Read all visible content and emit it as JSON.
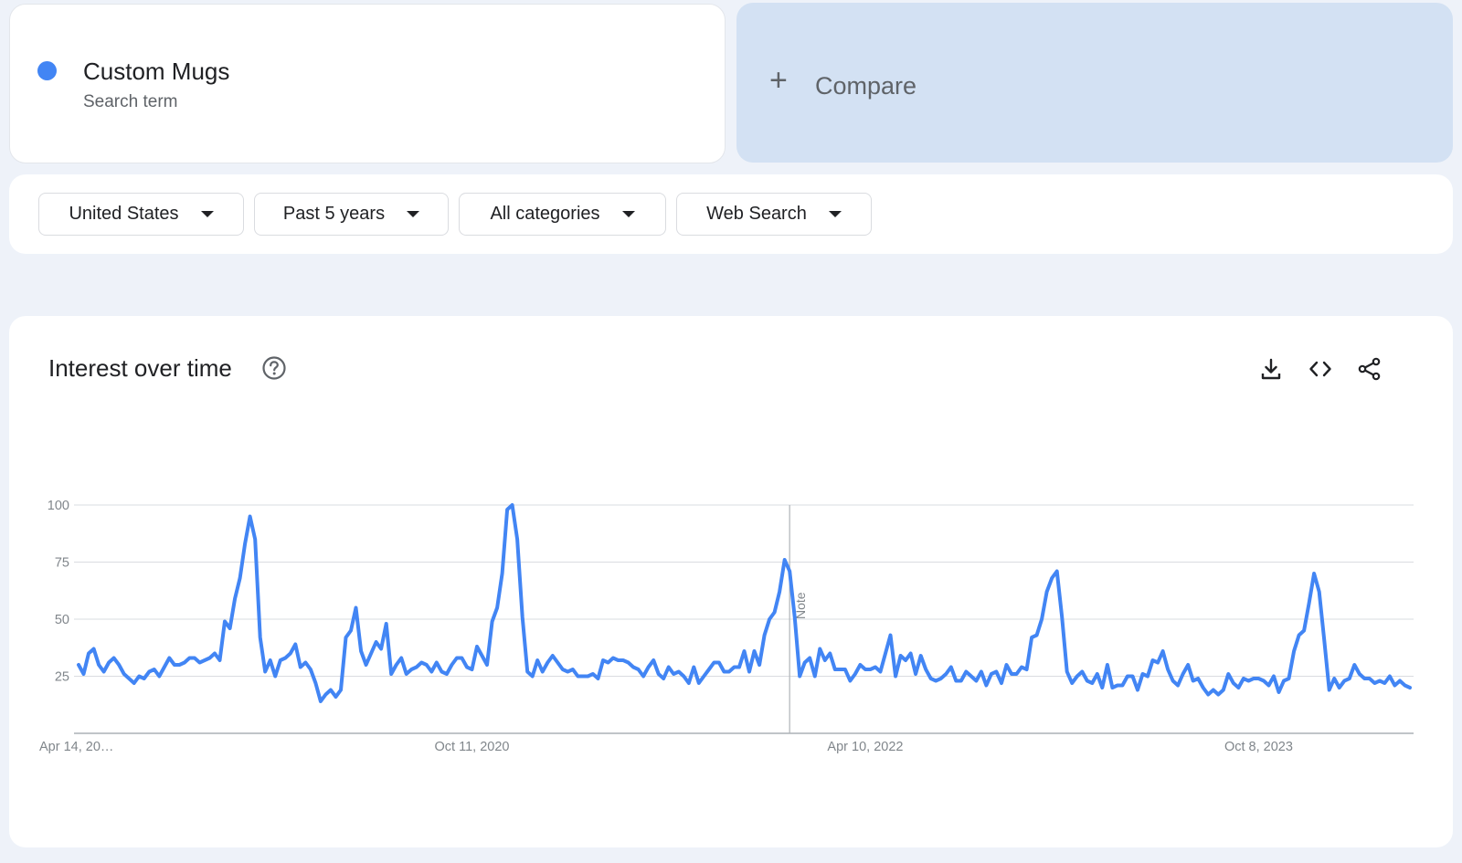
{
  "term": {
    "name": "Custom Mugs",
    "sub": "Search term",
    "color": "#4285f4"
  },
  "compare": {
    "plus": "+",
    "label": "Compare"
  },
  "filters": {
    "region": "United States",
    "period": "Past 5 years",
    "category": "All categories",
    "search_type": "Web Search"
  },
  "panel": {
    "title": "Interest over time",
    "icons": [
      "help-icon",
      "download-icon",
      "embed-icon",
      "share-icon"
    ]
  },
  "chart_data": {
    "type": "line",
    "title": "",
    "xlabel": "",
    "ylabel": "",
    "ylim": [
      0,
      100
    ],
    "y_ticks": [
      25,
      50,
      75,
      100
    ],
    "x_tick_labels": [
      "Apr 14, 20…",
      "Oct 11, 2020",
      "Apr 10, 2022",
      "Oct 8, 2023"
    ],
    "x_tick_weeks": [
      0,
      78,
      156,
      234
    ],
    "note_week": 141,
    "note_label": "Note",
    "grid": true,
    "series": [
      {
        "color": "#4285f4",
        "values": [
          30,
          26,
          35,
          37,
          30,
          27,
          31,
          33,
          30,
          26,
          24,
          22,
          25,
          24,
          27,
          28,
          25,
          29,
          33,
          30,
          30,
          31,
          33,
          33,
          31,
          32,
          33,
          35,
          32,
          49,
          46,
          59,
          68,
          83,
          95,
          85,
          42,
          27,
          32,
          25,
          32,
          33,
          35,
          39,
          29,
          31,
          28,
          22,
          14,
          17,
          19,
          16,
          19,
          42,
          45,
          55,
          36,
          30,
          35,
          40,
          37,
          48,
          26,
          30,
          33,
          26,
          28,
          29,
          31,
          30,
          27,
          31,
          27,
          26,
          30,
          33,
          33,
          29,
          28,
          38,
          34,
          30,
          49,
          55,
          70,
          98,
          100,
          85,
          51,
          27,
          25,
          32,
          27,
          31,
          34,
          31,
          28,
          27,
          28,
          25,
          25,
          25,
          26,
          24,
          32,
          31,
          33,
          32,
          32,
          31,
          29,
          28,
          25,
          29,
          32,
          26,
          24,
          29,
          26,
          27,
          25,
          22,
          29,
          22,
          25,
          28,
          31,
          31,
          27,
          27,
          29,
          29,
          36,
          27,
          36,
          30,
          43,
          50,
          53,
          62,
          76,
          71,
          51,
          25,
          31,
          33,
          25,
          37,
          32,
          35,
          28,
          28,
          28,
          23,
          26,
          30,
          28,
          28,
          29,
          27,
          35,
          43,
          25,
          34,
          32,
          35,
          26,
          34,
          28,
          24,
          23,
          24,
          26,
          29,
          23,
          23,
          27,
          25,
          23,
          27,
          21,
          26,
          27,
          22,
          30,
          26,
          26,
          29,
          28,
          42,
          43,
          50,
          62,
          68,
          71,
          51,
          27,
          22,
          25,
          27,
          23,
          22,
          26,
          20,
          30,
          20,
          21,
          21,
          25,
          25,
          19,
          26,
          25,
          32,
          31,
          36,
          28,
          23,
          21,
          26,
          30,
          23,
          24,
          20,
          17,
          19,
          17,
          19,
          26,
          22,
          20,
          24,
          23,
          24,
          24,
          23,
          21,
          25,
          18,
          23,
          24,
          36,
          43,
          45,
          57,
          70,
          62,
          41,
          19,
          24,
          20,
          23,
          24,
          30,
          26,
          24,
          24,
          22,
          23,
          22,
          25,
          21,
          23,
          21,
          20
        ]
      }
    ]
  }
}
